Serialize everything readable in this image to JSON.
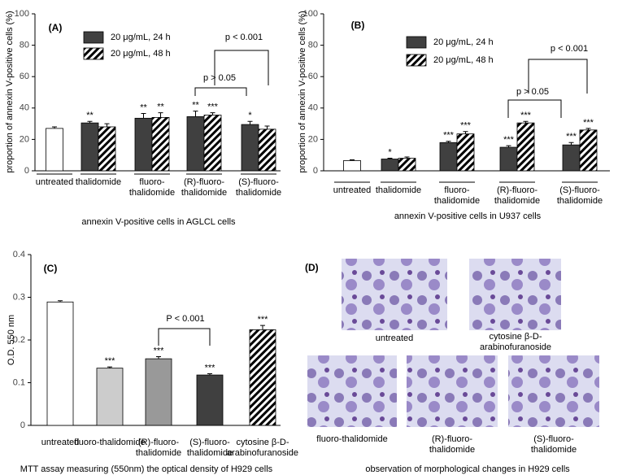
{
  "chart_data": [
    {
      "type": "bar",
      "title": "(A)",
      "ylabel": "proportion of annexin V-positive cells (%)",
      "xlabel": "annexin V-positive cells in AGLCL cells",
      "categories": [
        "untreated",
        "thalidomide",
        "fluoro-thalidomide",
        "(R)-fluoro-thalidomide",
        "(S)-fluoro-thalidomide"
      ],
      "control": {
        "value": 27,
        "error": 1,
        "color": "#ffffff"
      },
      "series": [
        {
          "name": "20 μg/mL, 24 h",
          "color": "#404040",
          "hatch": false,
          "values": [
            null,
            30.5,
            33.5,
            34.5,
            29.5
          ],
          "errors": [
            null,
            1,
            3,
            3.5,
            2
          ],
          "stars": [
            null,
            "**",
            "**",
            "**",
            "*"
          ]
        },
        {
          "name": "20 μg/mL, 48 h",
          "color": "#ffffff",
          "hatch": true,
          "values": [
            null,
            28,
            34,
            35.5,
            26.5
          ],
          "errors": [
            null,
            2,
            3,
            1.5,
            2
          ],
          "stars": [
            null,
            null,
            "**",
            "***",
            null
          ]
        }
      ],
      "annotations": [
        "p > 0.05",
        "p < 0.001"
      ],
      "ylim": [
        0,
        100
      ],
      "yticks": [
        0,
        20,
        40,
        60,
        80,
        100
      ]
    },
    {
      "type": "bar",
      "title": "(B)",
      "ylabel": "proportion of annexin V-positive cells (%)",
      "xlabel": "annexin V-positive cells in U937 cells",
      "categories": [
        "untreated",
        "thalidomide",
        "fluoro-thalidomide",
        "(R)-fluoro-thalidomide",
        "(S)-fluoro-thalidomide"
      ],
      "control": {
        "value": 6.5,
        "error": 0.5,
        "color": "#ffffff"
      },
      "series": [
        {
          "name": "20 μg/mL, 24 h",
          "color": "#404040",
          "hatch": false,
          "values": [
            null,
            7.5,
            18,
            15,
            16.5
          ],
          "errors": [
            null,
            0.5,
            0.8,
            1,
            1.5
          ],
          "stars": [
            null,
            "*",
            "***",
            "***",
            "***"
          ]
        },
        {
          "name": "20 μg/mL, 48 h",
          "color": "#ffffff",
          "hatch": true,
          "values": [
            null,
            8,
            23.5,
            30.5,
            26
          ],
          "errors": [
            null,
            0.8,
            1.5,
            1,
            1
          ],
          "stars": [
            null,
            null,
            "***",
            "***",
            "***"
          ]
        }
      ],
      "annotations": [
        "p > 0.05",
        "p < 0.001"
      ],
      "ylim": [
        0,
        100
      ],
      "yticks": [
        0,
        20,
        40,
        60,
        80,
        100
      ]
    },
    {
      "type": "bar",
      "title": "(C)",
      "ylabel": "O.D. 550 nm",
      "xlabel": "MTT assay measuring (550nm) the optical density of H929 cells",
      "categories": [
        "untreated",
        "fluoro-thalidomide",
        "(R)-fluoro-thalidomide",
        "(S)-fluoro-thalidomide",
        "cytosine β-D-arabinofuranoside"
      ],
      "values": [
        0.289,
        0.134,
        0.156,
        0.118,
        0.224
      ],
      "errors": [
        0.003,
        0.003,
        0.005,
        0.003,
        0.01
      ],
      "colors": [
        "#ffffff",
        "#cccccc",
        "#999999",
        "#404040",
        "#ffffff"
      ],
      "hatch": [
        false,
        false,
        false,
        false,
        true
      ],
      "stars": [
        null,
        "***",
        "***",
        "***",
        "***"
      ],
      "annotations": [
        "P < 0.001"
      ],
      "ylim": [
        0,
        0.4
      ],
      "yticks": [
        0,
        0.1,
        0.2,
        0.3,
        0.4
      ]
    }
  ],
  "panel_d": {
    "label": "(D)",
    "caption": "observation of morphological changes in H929 cells",
    "images": [
      {
        "caption": "untreated"
      },
      {
        "caption": "cytosine β-D-arabinofuranoside"
      },
      {
        "caption": "fluoro-thalidomide"
      },
      {
        "caption": "(R)-fluoro-thalidomide"
      },
      {
        "caption": "(S)-fluoro-thalidomide"
      }
    ]
  }
}
